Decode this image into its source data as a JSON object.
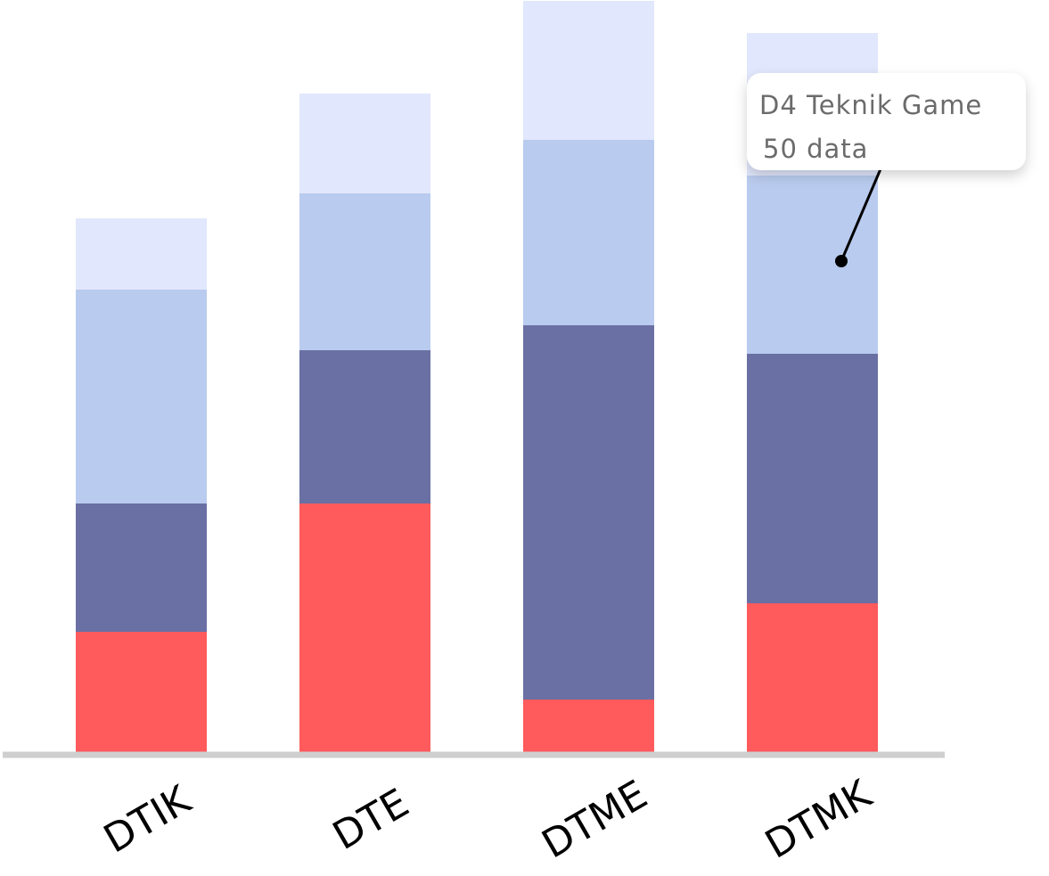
{
  "chart_data": {
    "type": "stacked_bar",
    "categories": [
      "DTIK",
      "DTE",
      "DTME",
      "DTMK"
    ],
    "series": [
      {
        "color": "#ff5a5c",
        "values": [
          34,
          70,
          15,
          42
        ]
      },
      {
        "color": "#6a70a3",
        "values": [
          36,
          43,
          105,
          70
        ]
      },
      {
        "color": "#b9cbee",
        "values": [
          60,
          44,
          52,
          50
        ]
      },
      {
        "color": "#e1e7fc",
        "values": [
          20,
          28,
          39,
          40
        ]
      }
    ],
    "ylim": [
      0,
      211
    ],
    "tooltip": {
      "title": "D4 Teknik Game",
      "text": "50 data"
    }
  }
}
